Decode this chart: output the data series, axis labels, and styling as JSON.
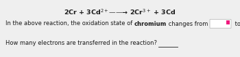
{
  "reaction_text": "2Cr + 3Cd$^{2+}$——→ 2Cr$^{3+}$ + 3Cd",
  "body_text1_pre": "In the above reaction, the oxidation state of ",
  "body_bold": "chromium",
  "body_text1_post": " changes from",
  "between_boxes": " to",
  "period": ".",
  "body_text2": "How many electrons are transferred in the reaction?",
  "background_color": "#efefef",
  "text_color": "#1a1a1a",
  "box_bg": "#ffffff",
  "box_border": "#bbbbbb",
  "icon_color": "#f0197d",
  "reaction_fontsize": 6.8,
  "body_fontsize": 6.0,
  "reaction_bold": true
}
